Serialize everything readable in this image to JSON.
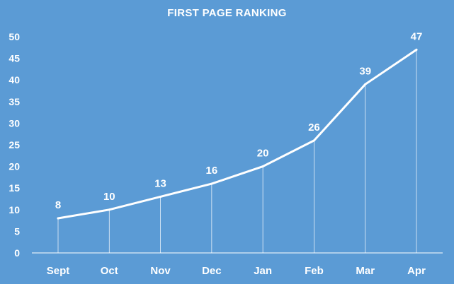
{
  "chart_data": {
    "type": "line",
    "title": "FIRST PAGE RANKING",
    "categories": [
      "Sept",
      "Oct",
      "Nov",
      "Dec",
      "Jan",
      "Feb",
      "Mar",
      "Apr"
    ],
    "series": [
      {
        "values": [
          8,
          10,
          13,
          16,
          20,
          26,
          39,
          47
        ]
      }
    ],
    "xlabel": "",
    "ylabel": "",
    "ylim": [
      0,
      50
    ],
    "yticks": [
      0,
      5,
      10,
      15,
      20,
      25,
      30,
      35,
      40,
      45,
      50
    ],
    "grid": false,
    "drop_lines": true,
    "data_labels": true,
    "colors": {
      "background": "#5b9bd5",
      "line": "#ffffff",
      "text": "#ffffff"
    }
  }
}
